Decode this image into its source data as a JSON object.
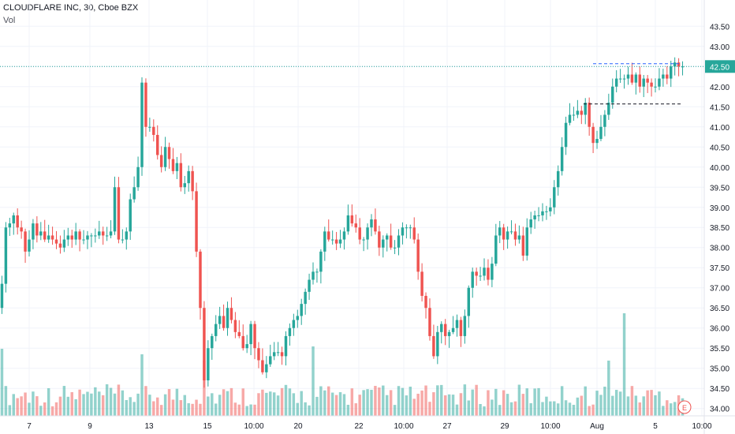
{
  "header": {
    "title": "CLOUDFLARE INC, 30, Cboe BZX",
    "volume_label": "Vol"
  },
  "chart_data": {
    "type": "candlestick",
    "symbol": "CLOUDFLARE INC",
    "interval": "30",
    "exchange": "Cboe BZX",
    "ylim": [
      33.7,
      43.8
    ],
    "y_ticks": [
      "34.00",
      "34.50",
      "35.00",
      "35.50",
      "36.00",
      "36.50",
      "37.00",
      "37.50",
      "38.00",
      "38.50",
      "39.00",
      "39.50",
      "40.00",
      "40.50",
      "41.00",
      "41.50",
      "42.00",
      "42.50",
      "43.00",
      "43.50"
    ],
    "x_ticks": [
      "7",
      "9",
      "13",
      "15",
      "10:00",
      "20",
      "22",
      "10:00",
      "27",
      "29",
      "10:00",
      "Aug",
      "5",
      "10:00"
    ],
    "last_price": "42.50",
    "up_color": "#26a69a",
    "down_color": "#ef5350",
    "earnings_marker": "E",
    "candles_close": [
      37.1,
      38.5,
      38.6,
      38.8,
      38.5,
      38.4,
      37.9,
      38.2,
      38.6,
      38.3,
      38.4,
      38.2,
      38.3,
      38.2,
      38.1,
      38.0,
      38.2,
      38.3,
      38.2,
      38.4,
      38.2,
      38.2,
      38.3,
      38.3,
      38.3,
      38.4,
      38.3,
      38.3,
      38.4,
      39.5,
      38.2,
      38.2,
      38.4,
      39.2,
      39.5,
      40.0,
      42.1,
      41.0,
      41.0,
      40.8,
      40.3,
      40.0,
      40.5,
      40.2,
      39.9,
      40.1,
      39.5,
      39.6,
      39.9,
      39.4,
      37.9,
      36.5,
      34.7,
      35.5,
      35.8,
      36.1,
      36.3,
      36.0,
      36.5,
      36.2,
      35.9,
      35.8,
      35.5,
      35.6,
      36.1,
      35.5,
      35.2,
      34.9,
      35.1,
      35.3,
      35.4,
      35.4,
      35.3,
      35.8,
      36.0,
      36.2,
      36.3,
      36.6,
      36.9,
      37.2,
      37.4,
      37.4,
      37.9,
      38.4,
      38.2,
      38.2,
      38.1,
      38.2,
      38.4,
      38.8,
      38.6,
      38.5,
      38.2,
      38.2,
      38.5,
      38.7,
      38.4,
      38.0,
      38.2,
      38.3,
      38.0,
      38.0,
      38.3,
      38.5,
      38.5,
      38.5,
      38.2,
      37.4,
      36.8,
      36.5,
      35.8,
      35.3,
      35.9,
      36.1,
      35.8,
      35.9,
      36.0,
      36.2,
      35.8,
      36.3,
      37.0,
      37.4,
      37.3,
      37.3,
      37.5,
      37.2,
      37.6,
      38.3,
      38.5,
      38.2,
      38.4,
      38.4,
      38.2,
      38.3,
      37.8,
      38.5,
      38.7,
      38.8,
      38.8,
      38.9,
      38.9,
      39.0,
      39.5,
      39.9,
      40.5,
      41.1,
      41.3,
      41.3,
      41.4,
      41.3,
      41.6,
      41.0,
      40.6,
      40.7,
      41.0,
      41.3,
      41.6,
      42.0,
      42.2,
      42.2,
      42.2,
      42.3,
      42.1,
      42.3,
      42.0,
      42.2,
      42.1,
      42.0,
      42.0,
      42.2,
      42.3,
      42.2,
      42.5,
      42.6,
      42.5,
      42.5
    ]
  }
}
